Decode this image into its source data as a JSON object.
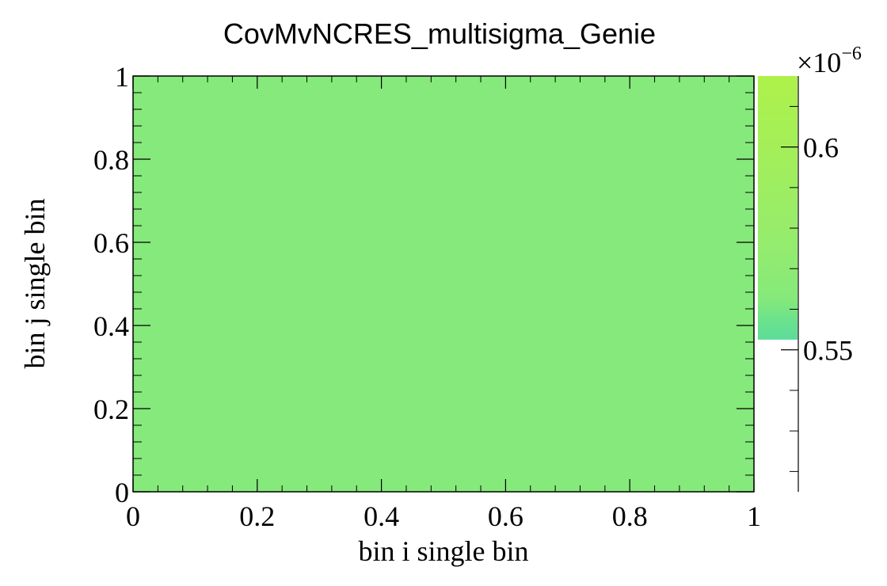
{
  "chart_data": {
    "type": "heatmap",
    "title": "CovMvNCRES_multisigma_Genie",
    "xlabel": "bin i single bin",
    "ylabel": "bin j single bin",
    "xlim": [
      0,
      1
    ],
    "ylim": [
      0,
      1
    ],
    "x_ticks": [
      "0",
      "0.2",
      "0.4",
      "0.6",
      "0.8",
      "1"
    ],
    "y_ticks": [
      "0",
      "0.2",
      "0.4",
      "0.6",
      "0.8",
      "1"
    ],
    "cells": [
      {
        "x_range": [
          0,
          1
        ],
        "y_range": [
          0,
          1
        ],
        "value": 0.5725,
        "color": "#85e97b"
      }
    ],
    "colorbar": {
      "exponent_text": "×10",
      "exponent_power": "−6",
      "range": [
        0.515,
        0.6175
      ],
      "filled_from": 0.5525,
      "ticks": [
        {
          "value": 0.55,
          "label": "0.55"
        },
        {
          "value": 0.6,
          "label": "0.6"
        }
      ],
      "gradient": [
        {
          "value": 0.5525,
          "color": "#5cdc9a"
        },
        {
          "value": 0.5575,
          "color": "#6ce28c"
        },
        {
          "value": 0.5625,
          "color": "#85e97b"
        },
        {
          "value": 0.5775,
          "color": "#96ec6c"
        },
        {
          "value": 0.6175,
          "color": "#aef14a"
        }
      ]
    }
  }
}
